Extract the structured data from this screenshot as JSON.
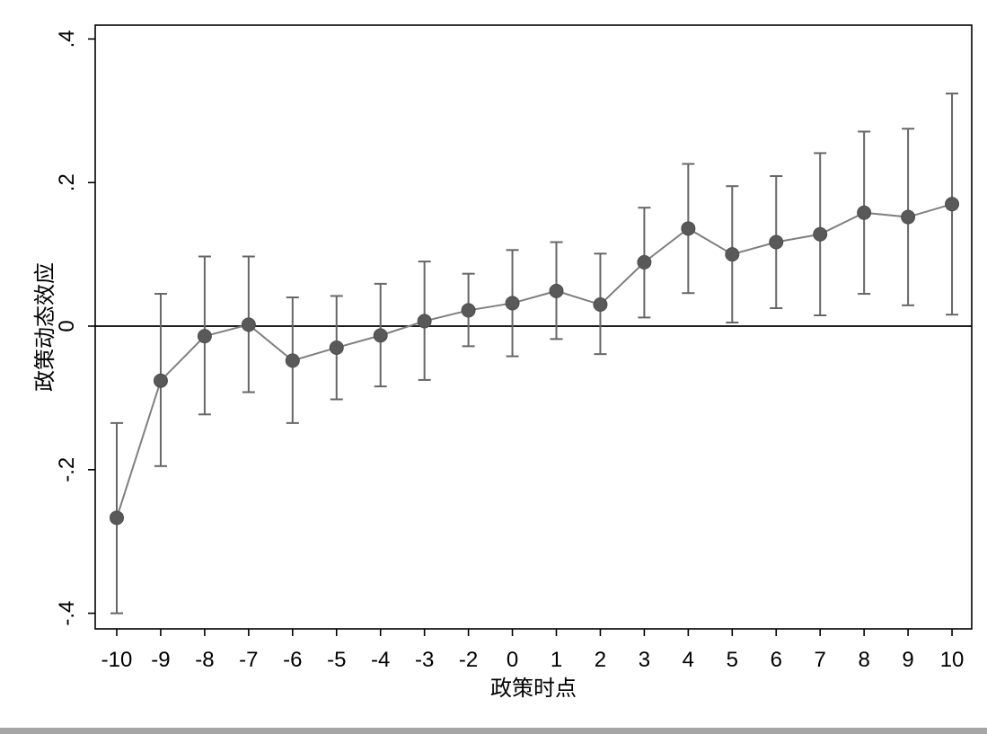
{
  "chart_data": {
    "type": "scatter",
    "title": "",
    "xlabel": "政策时点",
    "ylabel": "政策动态效应",
    "xlim": [
      -10.5,
      10.5
    ],
    "ylim": [
      -0.42,
      0.42
    ],
    "x_ticks": [
      -10,
      -9,
      -8,
      -7,
      -6,
      -5,
      -4,
      -3,
      -2,
      -1,
      0,
      1,
      2,
      3,
      4,
      5,
      6,
      7,
      8,
      9,
      10
    ],
    "x_tick_labels": [
      "-10",
      "-9",
      "-8",
      "-7",
      "-6",
      "-5",
      "-4",
      "-3",
      "-2",
      "0",
      "1",
      "2",
      "3",
      "4",
      "5",
      "6",
      "7",
      "8",
      "9",
      "10"
    ],
    "x_tick_positions": [
      -10,
      -9,
      -8,
      -7,
      -6,
      -5,
      -4,
      -3,
      -2,
      -1,
      0,
      1,
      2,
      3,
      4,
      5,
      6,
      7,
      8,
      9
    ],
    "y_ticks": [
      -0.4,
      -0.2,
      0,
      0.2,
      0.4
    ],
    "y_tick_labels": [
      ".4",
      ".2",
      "0",
      "-.2",
      "-.4"
    ],
    "y_tick_values": [
      0.4,
      0.2,
      0,
      -0.2,
      -0.4
    ],
    "reference_line_y": 0,
    "points": [
      {
        "x": -10,
        "y": -0.267,
        "lo": -0.4,
        "hi": -0.135
      },
      {
        "x": -9,
        "y": -0.076,
        "lo": -0.195,
        "hi": 0.045
      },
      {
        "x": -8,
        "y": -0.014,
        "lo": -0.123,
        "hi": 0.097
      },
      {
        "x": -7,
        "y": 0.002,
        "lo": -0.092,
        "hi": 0.097
      },
      {
        "x": -6,
        "y": -0.048,
        "lo": -0.135,
        "hi": 0.04
      },
      {
        "x": -5,
        "y": -0.03,
        "lo": -0.102,
        "hi": 0.042
      },
      {
        "x": -4,
        "y": -0.013,
        "lo": -0.084,
        "hi": 0.059
      },
      {
        "x": -3,
        "y": 0.007,
        "lo": -0.075,
        "hi": 0.09
      },
      {
        "x": -2,
        "y": 0.022,
        "lo": -0.028,
        "hi": 0.073
      },
      {
        "x": -1,
        "y": 0.032,
        "lo": -0.042,
        "hi": 0.106
      },
      {
        "x": 0,
        "y": 0.049,
        "lo": -0.018,
        "hi": 0.117
      },
      {
        "x": 1,
        "y": 0.03,
        "lo": -0.039,
        "hi": 0.101
      },
      {
        "x": 2,
        "y": 0.089,
        "lo": 0.012,
        "hi": 0.165
      },
      {
        "x": 3,
        "y": 0.136,
        "lo": 0.046,
        "hi": 0.226
      },
      {
        "x": 4,
        "y": 0.1,
        "lo": 0.005,
        "hi": 0.195
      },
      {
        "x": 5,
        "y": 0.117,
        "lo": 0.025,
        "hi": 0.209
      },
      {
        "x": 6,
        "y": 0.128,
        "lo": 0.015,
        "hi": 0.241
      },
      {
        "x": 7,
        "y": 0.158,
        "lo": 0.045,
        "hi": 0.271
      },
      {
        "x": 8,
        "y": 0.152,
        "lo": 0.029,
        "hi": 0.275
      },
      {
        "x": 9,
        "y": 0.17,
        "lo": 0.016,
        "hi": 0.324
      }
    ],
    "grid": false,
    "legend": "none",
    "colors": {
      "line": "#7f7f7f",
      "marker": "#595959",
      "errorbar": "#666666",
      "reference": "#000000",
      "frame": "#000000"
    }
  }
}
